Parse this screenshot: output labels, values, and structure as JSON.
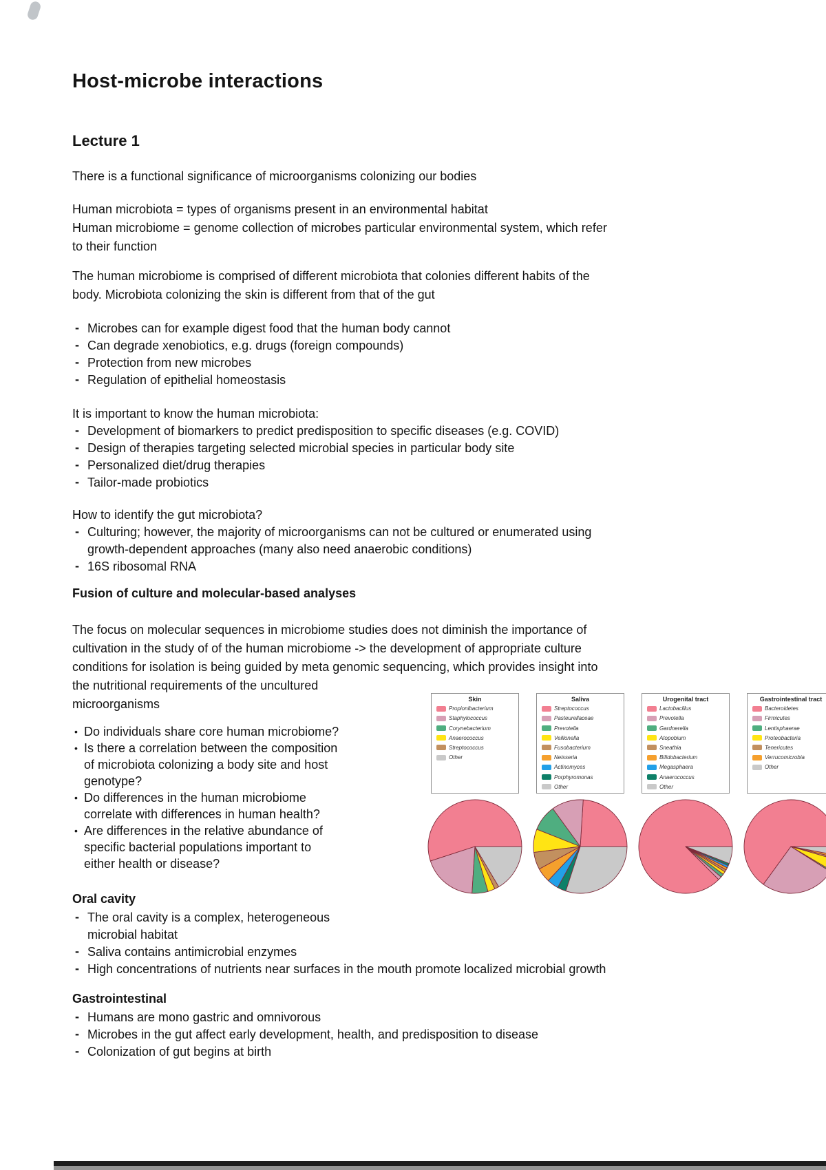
{
  "page": {
    "title": "Host-microbe interactions",
    "subtitle": "Lecture 1"
  },
  "sections": {
    "intro": "There is a functional significance of microorganisms colonizing our bodies",
    "definitions": "Human microbiota = types of organisms present in an environmental habitat\nHuman microbiome = genome collection of microbes particular environmental system, which refer\nto their function",
    "microbiome": "The human microbiome is comprised of different microbiota that colonies different habits of the\nbody. Microbiota colonizing the skin is different from that of the gut",
    "benefits": {
      "items": [
        "Microbes can for example digest food that the human body cannot",
        "Can degrade xenobiotics, e.g. drugs (foreign compounds)",
        "Protection from new microbes",
        "Regulation of epithelial homeostasis"
      ]
    },
    "importance": {
      "heading": "It is important to know the human microbiota:",
      "items": [
        "Development of biomarkers to predict predisposition to specific diseases (e.g. COVID)",
        "Design of therapies targeting selected microbial species in particular body site",
        "Personalized diet/drug therapies",
        "Tailor-made probiotics"
      ]
    },
    "identification": {
      "heading": "How to identify the gut microbiota?",
      "items": [
        "Culturing; however, the majority of microorganisms can not be cultured or enumerated using\ngrowth-dependent approaches (many also need anaerobic conditions)",
        "16S ribosomal RNA"
      ]
    },
    "fusion_heading": "Fusion of culture and molecular-based analyses",
    "focus": "The focus on molecular sequences in microbiome studies does not diminish the importance of\ncultivation in the study of of the human microbiome -> the development of appropriate culture\nconditions for isolation is being guided by meta genomic sequencing, which provides insight into\nthe nutritional requirements of the uncultured\nmicroorganisms",
    "questions": {
      "items": [
        "Do individuals share core human microbiome?",
        "Is there a correlation between the composition\nof microbiota colonizing a body site and host\ngenotype?",
        "Do differences in the human microbiome\ncorrelate with differences in human health?",
        "Are differences in the relative abundance of\nspecific bacterial populations important to\neither health or disease?"
      ]
    },
    "oral": {
      "heading": "Oral cavity",
      "items": [
        "The oral cavity is a complex, heterogeneous\nmicrobial habitat",
        "Saliva contains antimicrobial enzymes",
        "High concentrations of nutrients near surfaces in the mouth promote localized microbial growth"
      ]
    },
    "gastrointestinal": {
      "heading": "Gastrointestinal",
      "items": [
        "Humans are mono gastric and omnivorous",
        "Microbes in the gut affect early development, health, and predisposition to disease",
        "Colonization of gut begins at birth"
      ]
    }
  },
  "chart_data": [
    {
      "type": "pie",
      "title": "Skin",
      "labels": [
        "Propionibacterium",
        "Staphylococcus",
        "Corynebacterium",
        "Anaerococcus",
        "Streptococcus",
        "Other"
      ],
      "values": [
        55,
        19,
        5.5,
        2.5,
        1.5,
        16.5
      ],
      "colors": [
        "#F27F91",
        "#D79FB5",
        "#4FAE80",
        "#FFE414",
        "#C2905F",
        "#C9C9C9"
      ],
      "legend_position": "above",
      "start_angle": 0,
      "direction": "counterclockwise"
    },
    {
      "type": "pie",
      "title": "Saliva",
      "labels": [
        "Streptococcus",
        "Pasteurellaceae",
        "Prevotella",
        "Veillonella",
        "Fusobacterium",
        "Neisseria",
        "Actinomyces",
        "Porphyromonas",
        "Other"
      ],
      "values": [
        24,
        11,
        9,
        8,
        6,
        5,
        4,
        3,
        30
      ],
      "colors": [
        "#F27F91",
        "#D79FB5",
        "#4FAE80",
        "#FFE414",
        "#C2905F",
        "#F5A02D",
        "#22A0E8",
        "#0E8068",
        "#C9C9C9"
      ],
      "legend_position": "above",
      "start_angle": 0,
      "direction": "counterclockwise"
    },
    {
      "type": "pie",
      "title": "Urogenital tract",
      "labels": [
        "Lactobacillus",
        "Prevotella",
        "Gardnerella",
        "Atopobium",
        "Sneathia",
        "Bifidobacterium",
        "Megasphaera",
        "Anaerococcus",
        "Other"
      ],
      "values": [
        87.5,
        1.2,
        1.2,
        1.0,
        0.8,
        0.8,
        0.8,
        0.8,
        5.9
      ],
      "colors": [
        "#F27F91",
        "#D79FB5",
        "#4FAE80",
        "#FFE414",
        "#C2905F",
        "#F5A02D",
        "#22A0E8",
        "#0E8068",
        "#C9C9C9"
      ],
      "legend_position": "above",
      "start_angle": 0,
      "direction": "counterclockwise"
    },
    {
      "type": "pie",
      "title": "Gastrointestinal tract",
      "labels": [
        "Bacteroidetes",
        "Firmicutes",
        "Lentisphaerae",
        "Proteobacteria",
        "Tenericutes",
        "Verrucomicrobia",
        "Other"
      ],
      "values": [
        65,
        26,
        0.5,
        4,
        0.7,
        0.8,
        3
      ],
      "colors": [
        "#F27F91",
        "#D79FB5",
        "#4FAE80",
        "#FFE414",
        "#C2905F",
        "#F5A02D",
        "#C9C9C9"
      ],
      "legend_position": "above",
      "start_angle": 0,
      "direction": "counterclockwise"
    }
  ],
  "figure_style": {
    "slice_edge_color": "#7e2a3a",
    "legend_border_color": "#8f8f8f",
    "other_color": "#C9C9C9"
  }
}
